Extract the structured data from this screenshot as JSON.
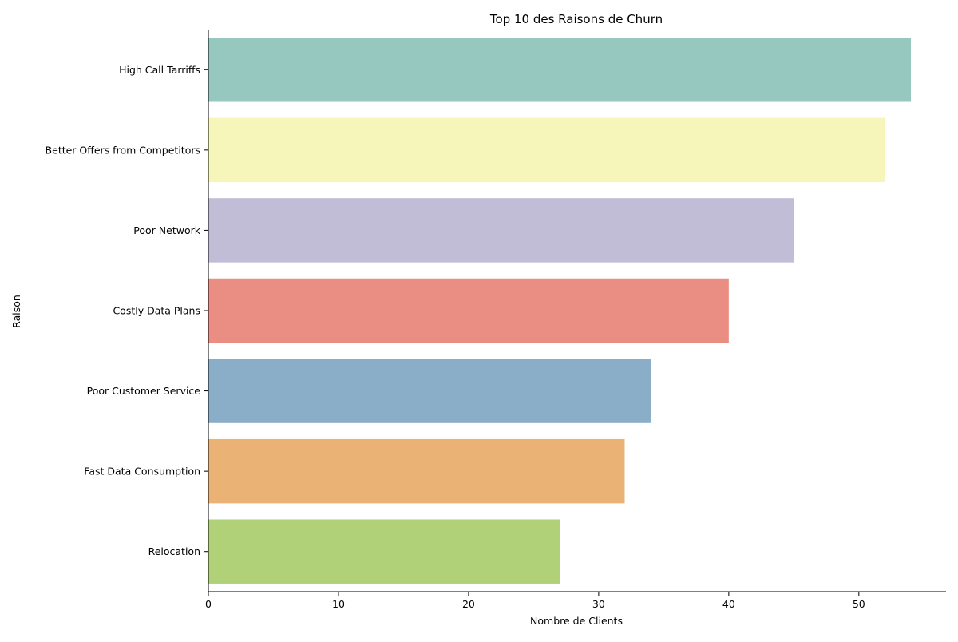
{
  "chart_data": {
    "type": "bar",
    "orientation": "horizontal",
    "title": "Top 10 des Raisons de Churn",
    "xlabel": "Nombre de Clients",
    "ylabel": "Raison",
    "categories": [
      "High Call Tarriffs",
      "Better Offers from Competitors",
      "Poor Network",
      "Costly Data Plans",
      "Poor Customer Service",
      "Fast Data Consumption",
      "Relocation"
    ],
    "values": [
      54,
      52,
      45,
      40,
      34,
      32,
      27
    ],
    "colors": [
      "#97c8c0",
      "#f6f6bb",
      "#c1bdd6",
      "#ea8d83",
      "#8aaec8",
      "#eab275",
      "#b0d178"
    ],
    "xlim": [
      0,
      56.7
    ],
    "xticks": [
      0,
      10,
      20,
      30,
      40,
      50
    ],
    "grid": false,
    "legend": "none"
  }
}
